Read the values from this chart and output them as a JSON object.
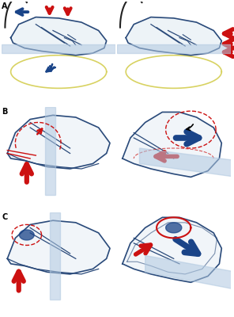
{
  "bg_color": "#ffffff",
  "liver_fill": "#dce8f0",
  "liver_edge": "#2a4a7a",
  "bar_color": "#b0c8e0",
  "red": "#cc1111",
  "blue": "#1a4488",
  "blue_light": "#3366aa",
  "green_circle": "#c8c830",
  "label_A": "A",
  "label_B": "B",
  "label_C": "C"
}
